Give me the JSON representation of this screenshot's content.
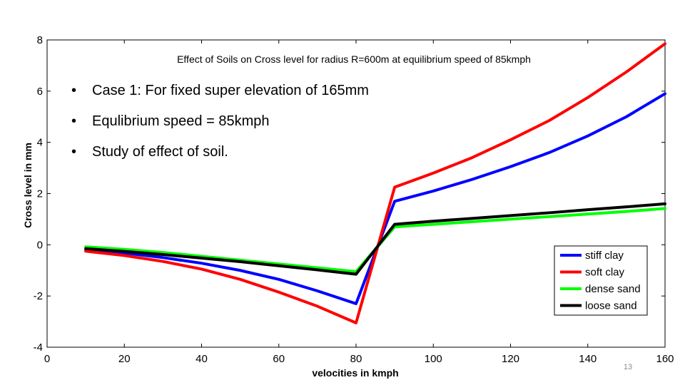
{
  "slide": {
    "bullets": [
      "Case 1: For fixed super elevation of 165mm",
      "Equlibrium speed = 85kmph",
      "Study of effect of soil."
    ],
    "bullet_glyph": "•",
    "page_number": "13"
  },
  "chart_data": {
    "type": "line",
    "title": "Effect of Soils on Cross level for radius R=600m at equilibrium speed of 85kmph",
    "xlabel": "velocities in kmph",
    "ylabel": "Cross level in mm",
    "xlim": [
      0,
      160
    ],
    "ylim": [
      -4,
      8
    ],
    "xticks": [
      "0",
      "20",
      "40",
      "60",
      "80",
      "100",
      "120",
      "140",
      "160"
    ],
    "yticks": [
      "-4",
      "-2",
      "0",
      "2",
      "4",
      "6",
      "8"
    ],
    "grid": false,
    "legend_position": "bottom-right",
    "x": [
      10,
      20,
      30,
      40,
      50,
      60,
      70,
      80,
      90,
      100,
      110,
      120,
      130,
      140,
      150,
      160
    ],
    "series": [
      {
        "name": "stiff clay",
        "color": "#0000ff",
        "values": [
          -0.2,
          -0.32,
          -0.5,
          -0.72,
          -1.0,
          -1.35,
          -1.8,
          -2.3,
          1.7,
          2.1,
          2.55,
          3.05,
          3.6,
          4.25,
          5.0,
          5.9
        ]
      },
      {
        "name": "soft clay",
        "color": "#ff0000",
        "values": [
          -0.25,
          -0.42,
          -0.65,
          -0.95,
          -1.35,
          -1.85,
          -2.4,
          -3.05,
          2.25,
          2.8,
          3.4,
          4.1,
          4.85,
          5.75,
          6.75,
          7.85
        ]
      },
      {
        "name": "dense sand",
        "color": "#00ff00",
        "values": [
          -0.08,
          -0.18,
          -0.3,
          -0.45,
          -0.6,
          -0.75,
          -0.9,
          -1.05,
          0.7,
          0.8,
          0.9,
          1.0,
          1.1,
          1.2,
          1.3,
          1.42
        ]
      },
      {
        "name": "loose sand",
        "color": "#000000",
        "values": [
          -0.15,
          -0.26,
          -0.38,
          -0.52,
          -0.66,
          -0.82,
          -0.98,
          -1.15,
          0.8,
          0.92,
          1.03,
          1.14,
          1.25,
          1.37,
          1.48,
          1.6
        ]
      }
    ]
  }
}
